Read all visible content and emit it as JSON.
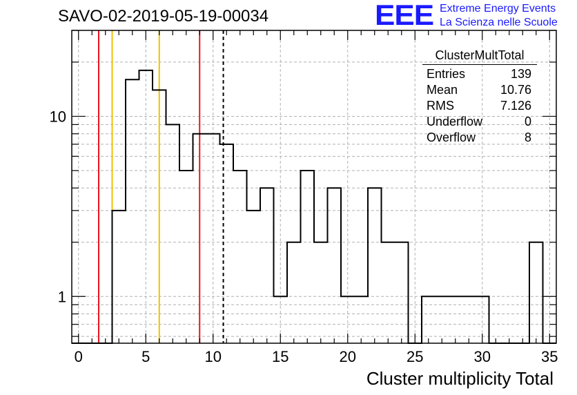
{
  "header": {
    "title": "SAVO-02-2019-05-19-00034"
  },
  "logo": {
    "mark": "EEE",
    "line1": "Extreme Energy Events",
    "line2": "La Scienza nelle Scuole",
    "color": "#1a1aff"
  },
  "stats_box": {
    "name": "ClusterMultTotal",
    "rows": [
      {
        "label": "Entries",
        "value": "139"
      },
      {
        "label": "Mean",
        "value": "10.76"
      },
      {
        "label": "RMS",
        "value": "7.126"
      },
      {
        "label": "Underflow",
        "value": "0"
      },
      {
        "label": "Overflow",
        "value": "8"
      }
    ]
  },
  "chart_data": {
    "type": "histogram",
    "title": "SAVO-02-2019-05-19-00034",
    "xlabel": "Cluster multiplicity Total",
    "ylabel": "",
    "x_scale": "linear",
    "y_scale": "log",
    "xlim": [
      -0.5,
      35.5
    ],
    "ylim": [
      0.55,
      30
    ],
    "bin_width": 1,
    "bin_lows": [
      -0.5,
      0.5,
      1.5,
      2.5,
      3.5,
      4.5,
      5.5,
      6.5,
      7.5,
      8.5,
      9.5,
      10.5,
      11.5,
      12.5,
      13.5,
      14.5,
      15.5,
      16.5,
      17.5,
      18.5,
      19.5,
      20.5,
      21.5,
      22.5,
      23.5,
      24.5,
      25.5,
      26.5,
      27.5,
      28.5,
      29.5,
      30.5,
      31.5,
      32.5,
      33.5,
      34.5
    ],
    "counts": [
      0,
      0,
      0,
      3,
      16,
      18,
      14,
      9,
      5,
      8,
      8,
      7,
      5,
      3,
      4,
      1,
      2,
      5,
      2,
      4,
      1,
      1,
      4,
      2,
      2,
      0,
      1,
      1,
      1,
      1,
      1,
      0,
      0,
      0,
      2,
      0
    ],
    "x_ticks": [
      0,
      5,
      10,
      15,
      20,
      25,
      30,
      35
    ],
    "y_tick_labels": [
      {
        "value": 1,
        "label": "1"
      },
      {
        "value": 10,
        "label": "10"
      }
    ],
    "grid": true,
    "vertical_lines": [
      {
        "x": 1.5,
        "color": "#e8141c",
        "style": "solid"
      },
      {
        "x": 2.5,
        "color": "#f0c000",
        "style": "solid"
      },
      {
        "x": 6.0,
        "color": "#f0c000",
        "style": "solid"
      },
      {
        "x": 9.0,
        "color": "#e8141c",
        "style": "solid"
      },
      {
        "x": 10.76,
        "color": "#000000",
        "style": "dashed"
      }
    ],
    "line_color": "#000000",
    "grid_color": "#b0b0b0"
  }
}
